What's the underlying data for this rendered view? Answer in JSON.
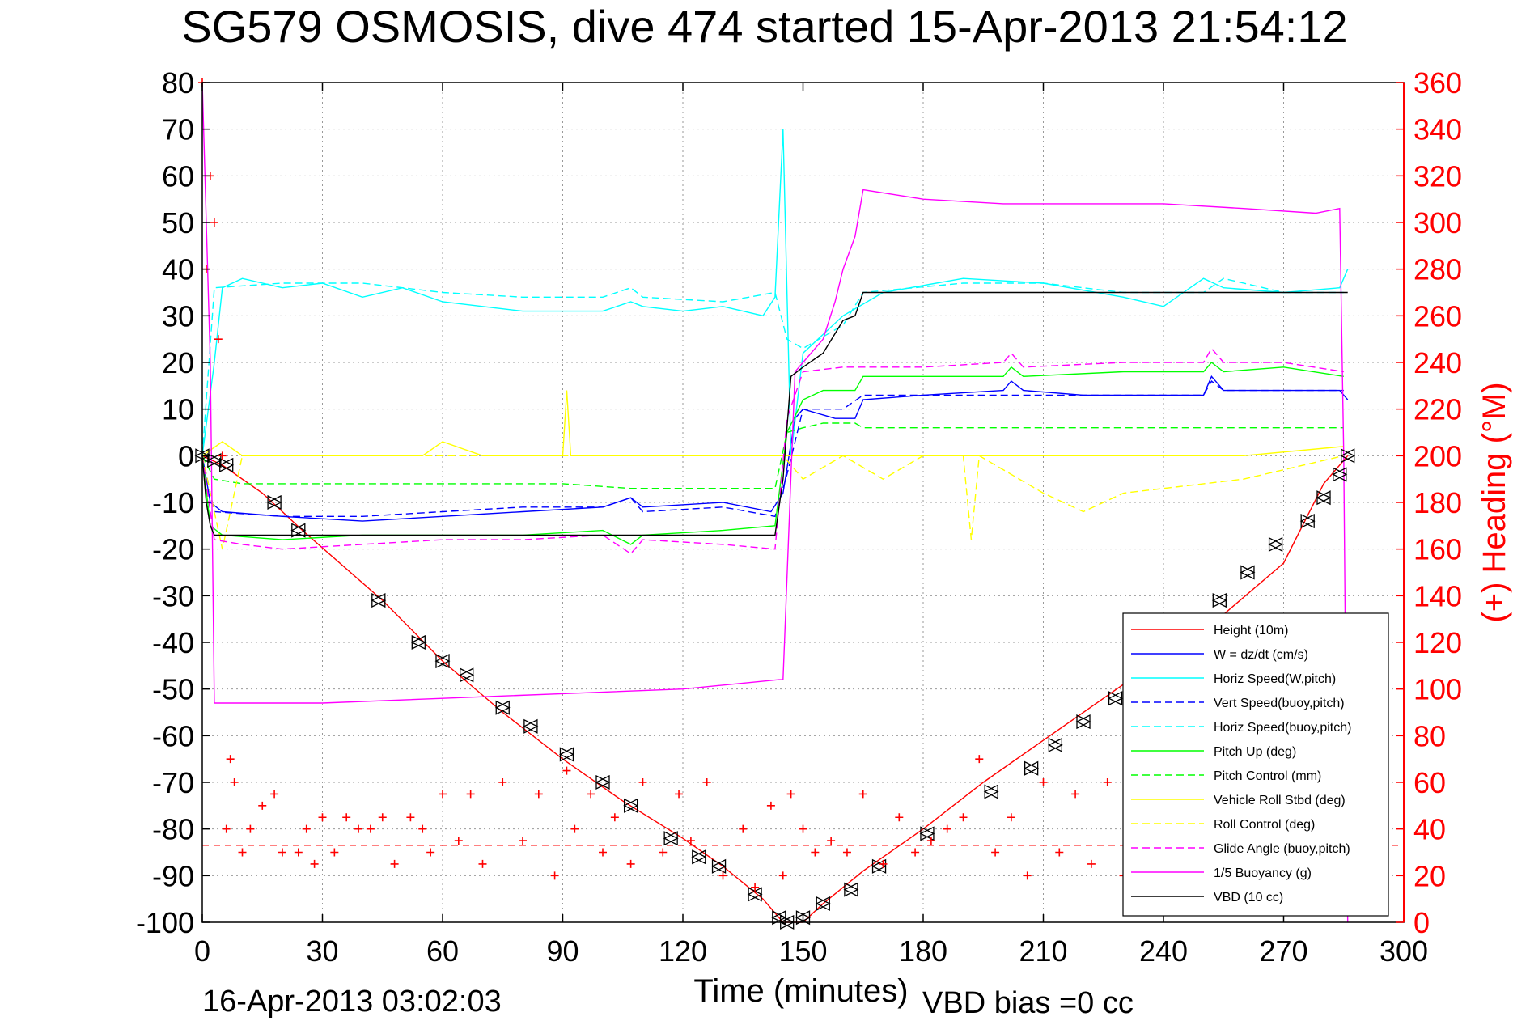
{
  "chart_data": {
    "type": "line",
    "title": "SG579 OSMOSIS, dive 474 started 15-Apr-2013 21:54:12",
    "xlabel": "Time (minutes)",
    "ylabel_right": "(+) Heading (°M)",
    "footer_left": "16-Apr-2013 03:02:03",
    "footer_right": "VBD bias =0 cc",
    "xlim": [
      0,
      300
    ],
    "ylim": [
      -100,
      80
    ],
    "y2lim": [
      0,
      360
    ],
    "x_ticks": [
      "0",
      "30",
      "60",
      "90",
      "120",
      "150",
      "180",
      "210",
      "240",
      "270",
      "300"
    ],
    "y_ticks": [
      "80",
      "70",
      "60",
      "50",
      "40",
      "30",
      "20",
      "10",
      "0",
      "-10",
      "-20",
      "-30",
      "-40",
      "-50",
      "-60",
      "-70",
      "-80",
      "-90",
      "-100"
    ],
    "y2_ticks": [
      "360",
      "340",
      "320",
      "300",
      "280",
      "260",
      "240",
      "220",
      "200",
      "180",
      "160",
      "140",
      "120",
      "100",
      "80",
      "60",
      "40",
      "20",
      "0"
    ],
    "grid": true,
    "legend_position": "lower-right",
    "colors": {
      "height": "#ff0000",
      "w": "#0000ff",
      "horiz_speed": "#00ffff",
      "pitch": "#00ff00",
      "roll": "#ffff00",
      "glide": "#ff00ff",
      "buoyancy": "#ff00ff",
      "vbd": "#000000",
      "heading": "#ff0000",
      "right_axis": "#ff0000"
    },
    "series": [
      {
        "name": "Height (10m)",
        "style": "solid",
        "color": "#ff0000",
        "x": [
          0,
          5,
          15,
          25,
          45,
          60,
          75,
          90,
          105,
          120,
          130,
          140,
          145,
          150,
          155,
          165,
          180,
          195,
          210,
          225,
          240,
          255,
          270,
          280,
          286
        ],
        "y": [
          0,
          -2,
          -8,
          -16,
          -31,
          -44,
          -55,
          -65,
          -74,
          -82,
          -88,
          -95,
          -100,
          -100,
          -96,
          -89,
          -80,
          -70,
          -61,
          -52,
          -43,
          -34,
          -23,
          -6,
          0
        ]
      },
      {
        "name": "W = dz/dt (cm/s)",
        "style": "solid",
        "color": "#0000ff",
        "x": [
          0,
          2,
          5,
          20,
          40,
          60,
          80,
          100,
          107,
          110,
          130,
          142,
          145,
          148,
          150,
          158,
          163,
          165,
          180,
          200,
          202,
          205,
          220,
          250,
          252,
          255,
          270,
          284,
          286
        ],
        "y": [
          0,
          -10,
          -12,
          -13,
          -14,
          -13,
          -12,
          -11,
          -9,
          -11,
          -10,
          -12,
          -8,
          8,
          10,
          8,
          8,
          12,
          13,
          14,
          16,
          14,
          13,
          13,
          17,
          14,
          14,
          14,
          12
        ]
      },
      {
        "name": "Horiz Speed(W,pitch)",
        "style": "solid",
        "color": "#00ffff",
        "x": [
          0,
          3,
          5,
          10,
          20,
          30,
          40,
          50,
          60,
          70,
          80,
          90,
          100,
          107,
          110,
          120,
          130,
          140,
          143,
          145,
          147,
          150,
          160,
          170,
          190,
          210,
          230,
          240,
          250,
          255,
          270,
          284,
          286
        ],
        "y": [
          0,
          20,
          36,
          38,
          36,
          37,
          34,
          36,
          33,
          32,
          31,
          31,
          31,
          33,
          32,
          31,
          32,
          30,
          34,
          70,
          0,
          22,
          30,
          35,
          38,
          37,
          34,
          32,
          38,
          36,
          35,
          36,
          40
        ]
      },
      {
        "name": "Vert Speed(buoy,pitch)",
        "style": "dashed",
        "color": "#0000ff",
        "x": [
          0,
          3,
          20,
          40,
          60,
          80,
          100,
          107,
          110,
          130,
          143,
          146,
          150,
          160,
          165,
          180,
          200,
          220,
          250,
          252,
          255,
          270,
          285
        ],
        "y": [
          0,
          -12,
          -13,
          -13,
          -12,
          -11,
          -11,
          -9,
          -12,
          -11,
          -13,
          -4,
          10,
          10,
          13,
          13,
          13,
          13,
          13,
          16,
          14,
          14,
          14
        ]
      },
      {
        "name": "Horiz Speed(buoy,pitch)",
        "style": "dashed",
        "color": "#00ffff",
        "x": [
          0,
          3,
          20,
          40,
          50,
          60,
          80,
          100,
          107,
          110,
          130,
          143,
          146,
          150,
          160,
          165,
          190,
          210,
          230,
          250,
          255,
          270,
          285
        ],
        "y": [
          0,
          36,
          37,
          37,
          36,
          35,
          34,
          34,
          36,
          34,
          33,
          35,
          25,
          23,
          28,
          35,
          37,
          37,
          35,
          35,
          38,
          35,
          35
        ]
      },
      {
        "name": "Pitch Up (deg)",
        "style": "solid",
        "color": "#00ff00",
        "x": [
          0,
          2,
          5,
          20,
          40,
          60,
          80,
          100,
          107,
          110,
          130,
          143,
          146,
          150,
          155,
          163,
          165,
          180,
          200,
          202,
          205,
          230,
          250,
          252,
          255,
          270,
          285
        ],
        "y": [
          0,
          -15,
          -17,
          -18,
          -17,
          -17,
          -17,
          -16,
          -19,
          -17,
          -16,
          -15,
          5,
          12,
          14,
          14,
          17,
          17,
          17,
          19,
          17,
          18,
          18,
          20,
          18,
          19,
          17
        ]
      },
      {
        "name": "Pitch Control (mm)",
        "style": "dashed",
        "color": "#00ff00",
        "x": [
          0,
          3,
          10,
          30,
          50,
          90,
          107,
          130,
          143,
          146,
          150,
          155,
          163,
          165,
          200,
          250,
          285
        ],
        "y": [
          0,
          -5,
          -6,
          -6,
          -6,
          -6,
          -7,
          -7,
          -7,
          5,
          6,
          7,
          7,
          6,
          6,
          6,
          6
        ]
      },
      {
        "name": "Vehicle Roll Stbd (deg)",
        "style": "solid",
        "color": "#ffff00",
        "x": [
          0,
          5,
          10,
          20,
          40,
          55,
          60,
          70,
          80,
          90,
          91,
          92,
          100,
          110,
          120,
          140,
          150,
          180,
          220,
          260,
          285
        ],
        "y": [
          0,
          3,
          0,
          0,
          0,
          0,
          3,
          0,
          0,
          0,
          14,
          0,
          0,
          0,
          0,
          0,
          0,
          0,
          0,
          0,
          2
        ]
      },
      {
        "name": "Roll Control (deg)",
        "style": "dashed",
        "color": "#ffff00",
        "x": [
          0,
          5,
          10,
          30,
          60,
          90,
          120,
          145,
          150,
          160,
          170,
          180,
          190,
          192,
          194,
          210,
          220,
          230,
          260,
          285
        ],
        "y": [
          0,
          -20,
          0,
          0,
          0,
          0,
          0,
          0,
          -5,
          0,
          -5,
          0,
          0,
          -18,
          0,
          -8,
          -12,
          -8,
          -5,
          0
        ]
      },
      {
        "name": "Glide Angle (buoy,pitch)",
        "style": "dashed",
        "color": "#ff00ff",
        "x": [
          0,
          3,
          10,
          20,
          40,
          60,
          80,
          100,
          107,
          110,
          130,
          143,
          146,
          150,
          160,
          165,
          180,
          200,
          202,
          205,
          230,
          250,
          252,
          255,
          270,
          285
        ],
        "y": [
          0,
          -18,
          -19,
          -20,
          -19,
          -18,
          -18,
          -17,
          -21,
          -18,
          -19,
          -20,
          8,
          18,
          19,
          19,
          19,
          20,
          22,
          19,
          20,
          20,
          23,
          20,
          20,
          18
        ]
      },
      {
        "name": "1/5 Buoyancy (g)",
        "style": "solid",
        "color": "#ff00ff",
        "x": [
          0,
          2,
          3,
          30,
          60,
          90,
          120,
          144,
          145,
          148,
          150,
          155,
          158,
          160,
          163,
          165,
          180,
          200,
          220,
          240,
          260,
          278,
          284,
          285,
          286
        ],
        "y": [
          80,
          20,
          -53,
          -53,
          -52,
          -51,
          -50,
          -48,
          -48,
          18,
          20,
          25,
          33,
          40,
          47,
          57,
          55,
          54,
          54,
          54,
          53,
          52,
          53,
          0,
          -100
        ]
      },
      {
        "name": "VBD (10 cc)",
        "style": "solid",
        "color": "#000000",
        "x": [
          0,
          1,
          2,
          3,
          30,
          60,
          90,
          120,
          143,
          145,
          147,
          150,
          155,
          160,
          163,
          165,
          180,
          200,
          230,
          260,
          286
        ],
        "y": [
          0,
          -10,
          -15,
          -17,
          -17,
          -17,
          -17,
          -17,
          -17,
          -5,
          17,
          19,
          22,
          29,
          30,
          35,
          35,
          35,
          35,
          35,
          35
        ]
      }
    ],
    "heading_series": {
      "name": "Heading",
      "axis": "right",
      "marker": "+",
      "color": "#ff0000",
      "reference_line": 33,
      "x": [
        0,
        1,
        2,
        3,
        4,
        5,
        6,
        7,
        8,
        10,
        12,
        15,
        18,
        20,
        24,
        26,
        28,
        30,
        33,
        36,
        39,
        42,
        45,
        48,
        52,
        55,
        57,
        60,
        64,
        67,
        70,
        75,
        80,
        84,
        88,
        91,
        93,
        97,
        100,
        103,
        107,
        110,
        115,
        119,
        122,
        126,
        130,
        135,
        138,
        142,
        145,
        147,
        150,
        153,
        157,
        161,
        165,
        170,
        174,
        178,
        182,
        186,
        190,
        194,
        198,
        202,
        206,
        210,
        214,
        218,
        222,
        226,
        230,
        234,
        238,
        242,
        246,
        250,
        254,
        258,
        262,
        266,
        270,
        274,
        278,
        282,
        285
      ],
      "y": [
        360,
        280,
        320,
        300,
        250,
        200,
        40,
        70,
        60,
        30,
        40,
        50,
        55,
        30,
        30,
        40,
        25,
        45,
        30,
        45,
        40,
        40,
        45,
        25,
        45,
        40,
        30,
        55,
        35,
        55,
        25,
        60,
        35,
        55,
        20,
        65,
        40,
        55,
        30,
        45,
        25,
        60,
        30,
        55,
        35,
        60,
        20,
        40,
        15,
        50,
        20,
        55,
        40,
        30,
        35,
        30,
        55,
        25,
        45,
        30,
        35,
        40,
        45,
        70,
        30,
        45,
        20,
        60,
        30,
        55,
        25,
        60,
        20,
        50,
        30,
        60,
        35,
        55,
        45,
        50,
        35,
        55,
        30,
        60,
        40,
        55,
        45
      ]
    },
    "depth_markers": {
      "marker": "triangle",
      "color": "#000000",
      "x": [
        0,
        3,
        6,
        18,
        24,
        44,
        54,
        60,
        66,
        75,
        82,
        91,
        100,
        107,
        117,
        124,
        129,
        138,
        144,
        146,
        150,
        155,
        162,
        169,
        181,
        197,
        207,
        213,
        220,
        228,
        234,
        241,
        248,
        254,
        261,
        268,
        276,
        280,
        284,
        286
      ],
      "y": [
        0,
        -1,
        -2,
        -10,
        -16,
        -31,
        -40,
        -44,
        -47,
        -54,
        -58,
        -64,
        -70,
        -75,
        -82,
        -86,
        -88,
        -94,
        -99,
        -100,
        -99,
        -96,
        -93,
        -88,
        -81,
        -72,
        -67,
        -62,
        -57,
        -52,
        -47,
        -41,
        -36,
        -31,
        -25,
        -19,
        -14,
        -9,
        -4,
        0
      ]
    }
  }
}
